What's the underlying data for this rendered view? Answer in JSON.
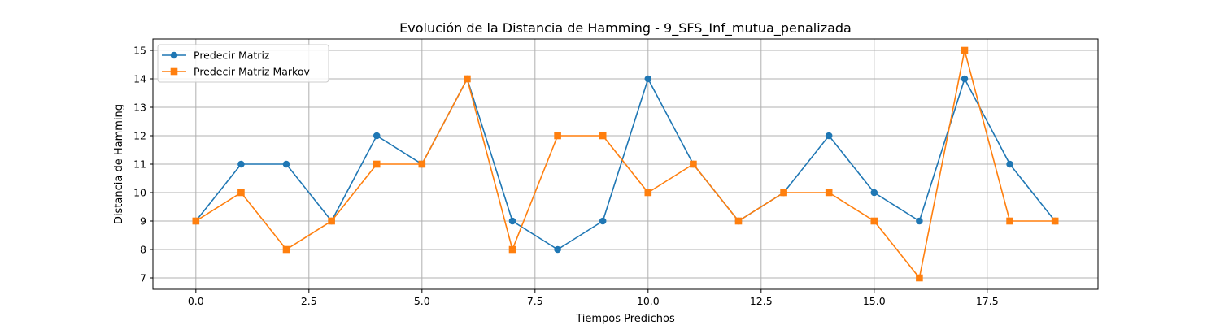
{
  "chart_data": {
    "type": "line",
    "title": "Evolución de la Distancia de Hamming - 9_SFS_Inf_mutua_penalizada",
    "xlabel": "Tiempos Predichos",
    "ylabel": "Distancia de Hamming",
    "x": [
      0,
      1,
      2,
      3,
      4,
      5,
      6,
      7,
      8,
      9,
      10,
      11,
      12,
      13,
      14,
      15,
      16,
      17,
      18,
      19
    ],
    "xlim": [
      -0.95,
      19.95
    ],
    "ylim": [
      6.6,
      15.4
    ],
    "xticks": [
      0.0,
      2.5,
      5.0,
      7.5,
      10.0,
      12.5,
      15.0,
      17.5
    ],
    "xtick_labels": [
      "0.0",
      "2.5",
      "5.0",
      "7.5",
      "10.0",
      "12.5",
      "15.0",
      "17.5"
    ],
    "yticks": [
      7,
      8,
      9,
      10,
      11,
      12,
      13,
      14,
      15
    ],
    "ytick_labels": [
      "7",
      "8",
      "9",
      "10",
      "11",
      "12",
      "13",
      "14",
      "15"
    ],
    "grid": true,
    "legend_position": "top-left",
    "series": [
      {
        "name": "Predecir Matriz",
        "color": "#1f77b4",
        "marker": "circle",
        "values": [
          9,
          11,
          11,
          9,
          12,
          11,
          14,
          9,
          8,
          9,
          14,
          11,
          9,
          10,
          12,
          10,
          9,
          14,
          11,
          9
        ]
      },
      {
        "name": "Predecir Matriz Markov",
        "color": "#ff7f0e",
        "marker": "square",
        "values": [
          9,
          10,
          8,
          9,
          11,
          11,
          14,
          8,
          12,
          12,
          10,
          11,
          9,
          10,
          10,
          9,
          7,
          15,
          9,
          9
        ]
      }
    ]
  }
}
